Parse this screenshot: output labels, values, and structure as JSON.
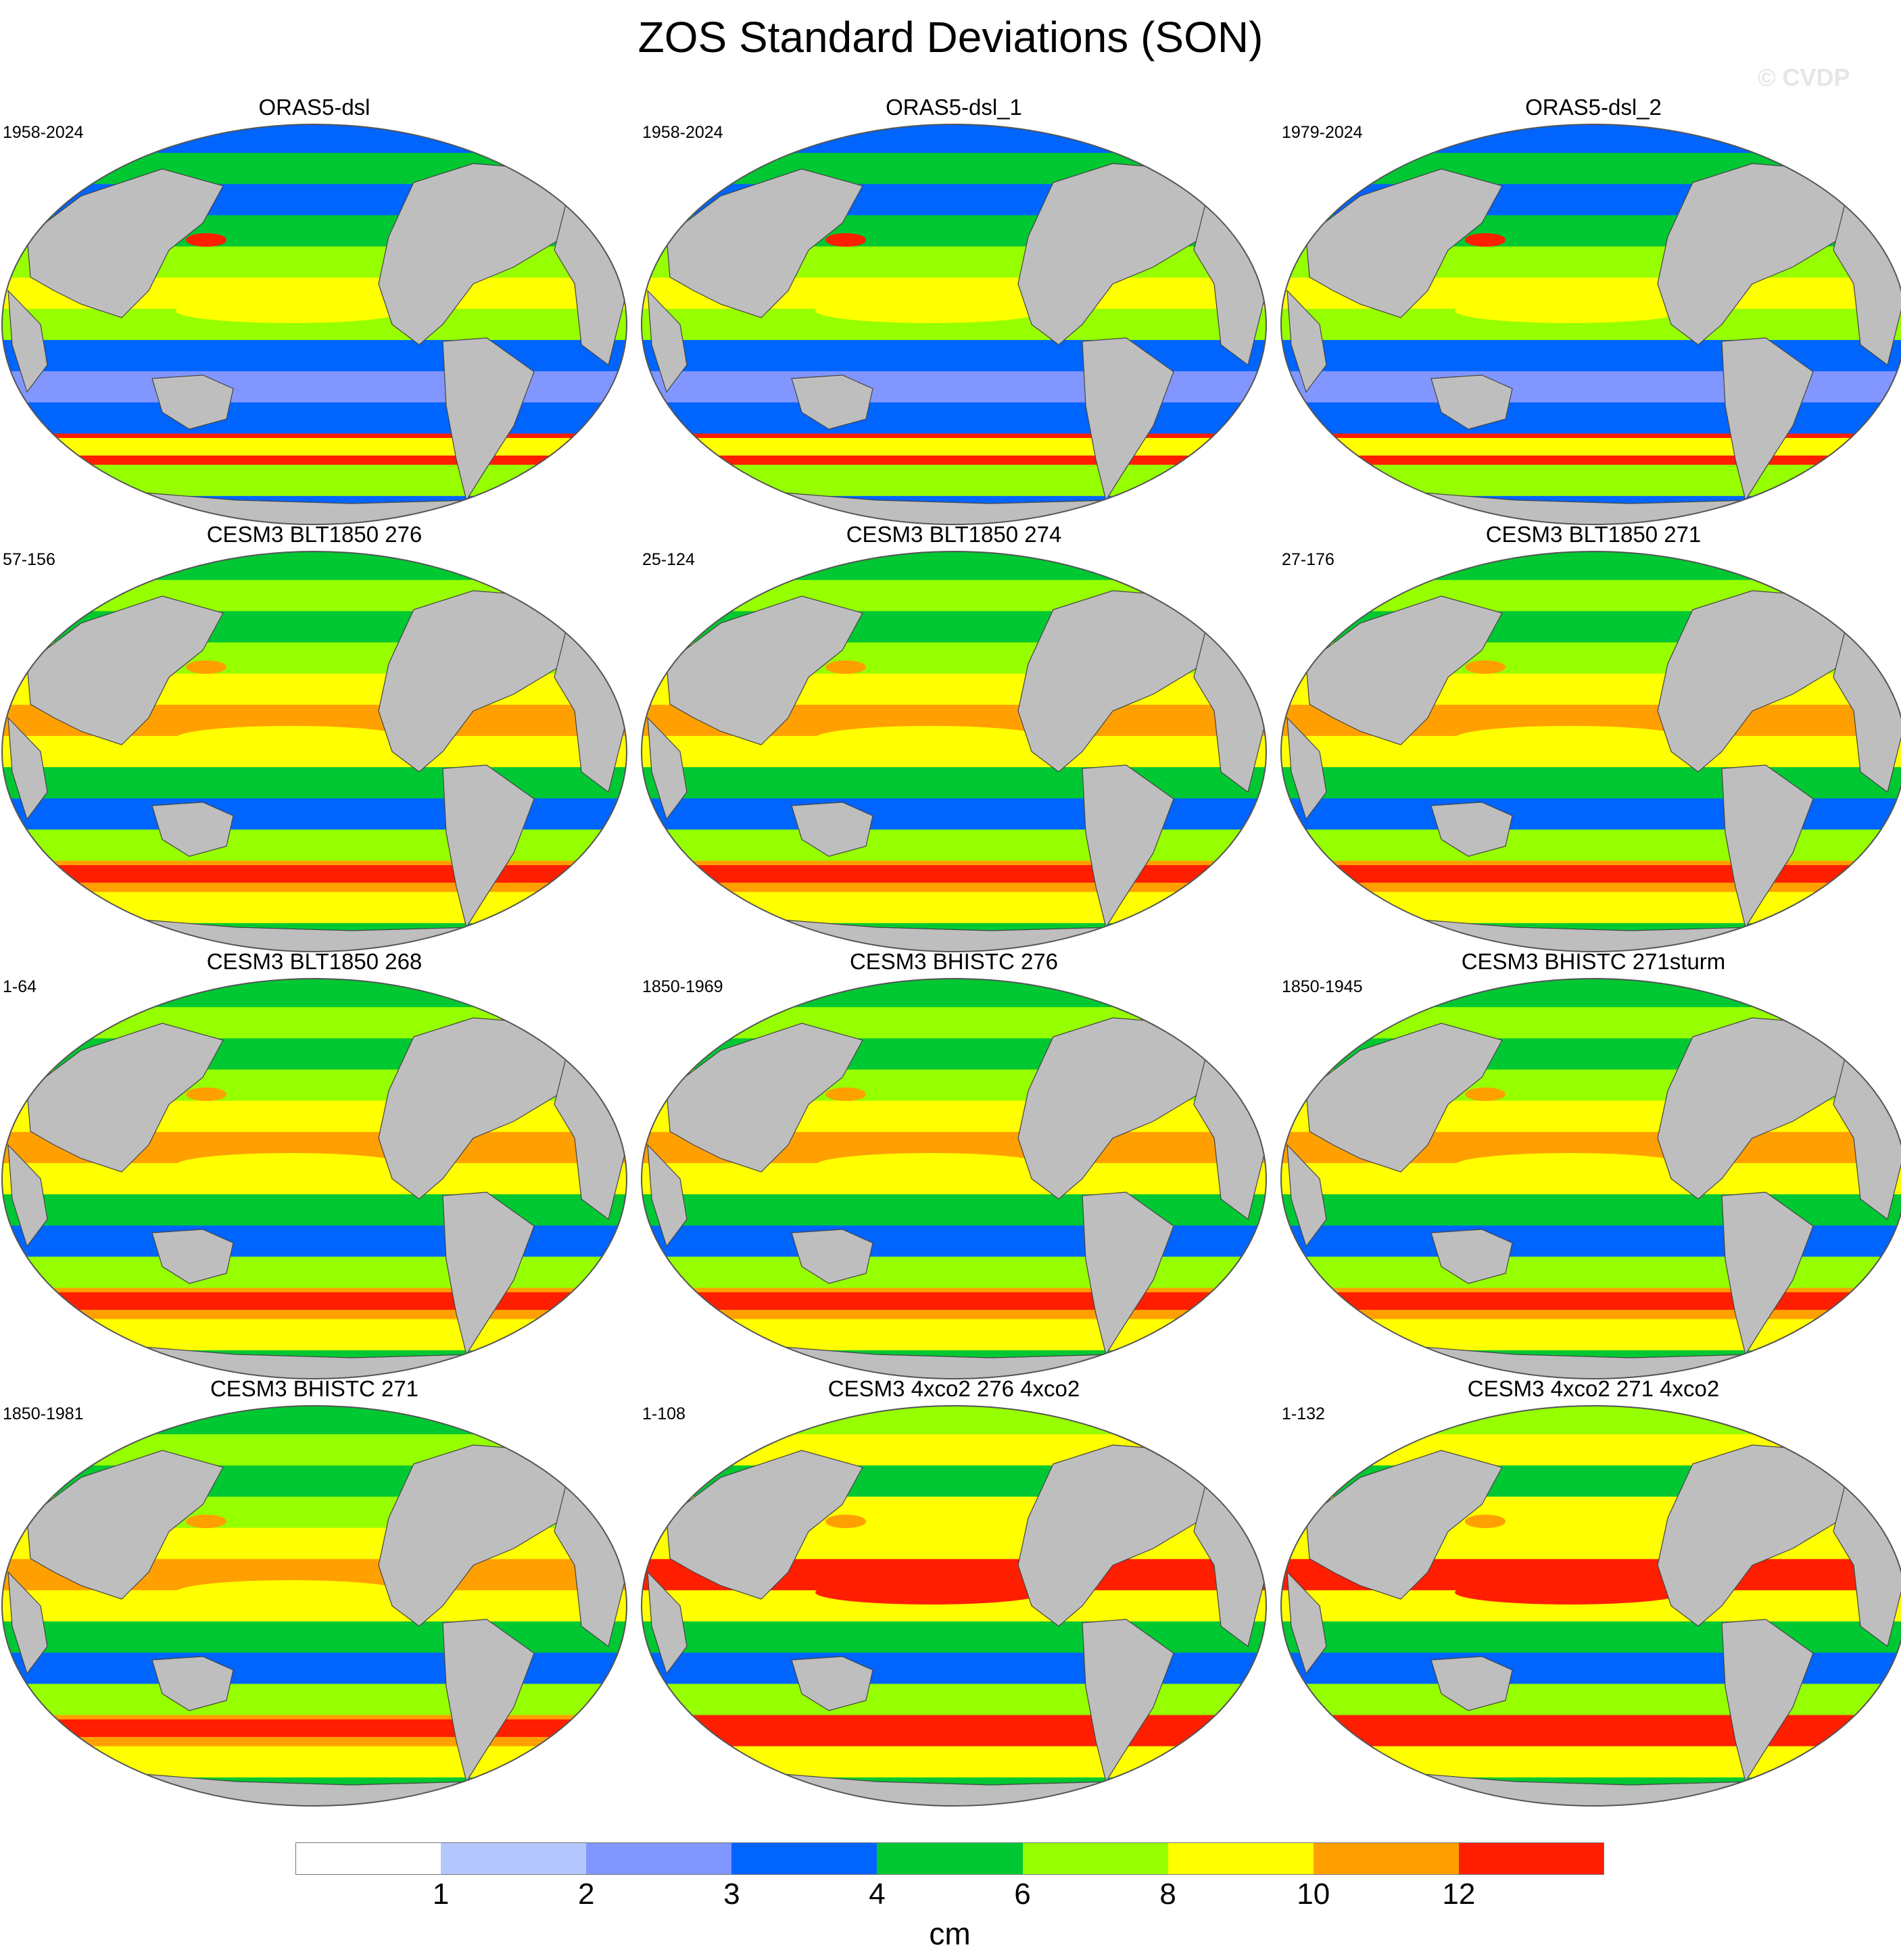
{
  "title": "ZOS Standard Deviations (SON)",
  "watermark": "© CVDP",
  "panels": [
    {
      "title": "ORAS5-dsl",
      "period": "1958-2024",
      "kind": "obs"
    },
    {
      "title": "ORAS5-dsl_1",
      "period": "1958-2024",
      "kind": "obs"
    },
    {
      "title": "ORAS5-dsl_2",
      "period": "1979-2024",
      "kind": "obs"
    },
    {
      "title": "CESM3 BLT1850 276",
      "period": "57-156",
      "kind": "model"
    },
    {
      "title": "CESM3 BLT1850 274",
      "period": "25-124",
      "kind": "model"
    },
    {
      "title": "CESM3 BLT1850 271",
      "period": "27-176",
      "kind": "model"
    },
    {
      "title": "CESM3 BLT1850 268",
      "period": "1-64",
      "kind": "model"
    },
    {
      "title": "CESM3 BHISTC 276",
      "period": "1850-1969",
      "kind": "model"
    },
    {
      "title": "CESM3 BHISTC 271sturm",
      "period": "1850-1945",
      "kind": "model"
    },
    {
      "title": "CESM3 BHISTC 271",
      "period": "1850-1981",
      "kind": "model"
    },
    {
      "title": "CESM3 4xco2 276 4xco2",
      "period": "1-108",
      "kind": "warm"
    },
    {
      "title": "CESM3 4xco2 271 4xco2",
      "period": "1-132",
      "kind": "warm"
    }
  ],
  "colorbar": {
    "unit": "cm",
    "labels": [
      "1",
      "2",
      "3",
      "4",
      "6",
      "8",
      "10",
      "12"
    ],
    "colors": [
      "#ffffff",
      "#b4c8ff",
      "#8296ff",
      "#0064ff",
      "#00c832",
      "#96ff00",
      "#ffff00",
      "#ffa000",
      "#ff1e00"
    ]
  },
  "palette": {
    "land": "#bebebe",
    "coast": "#444444"
  }
}
